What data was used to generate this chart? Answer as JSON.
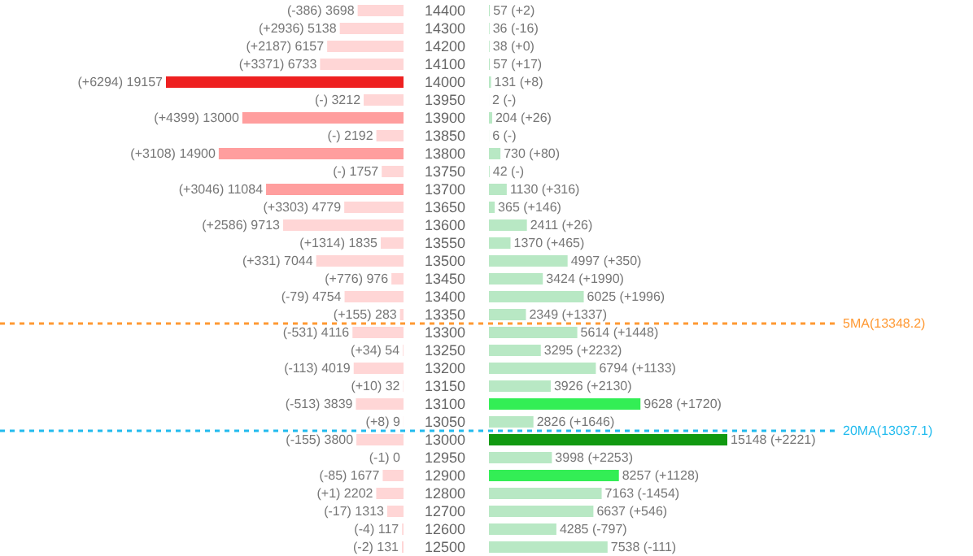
{
  "chart_data": [
    {
      "type": "bar",
      "orientation": "horizontal",
      "tick_labels": false,
      "categories": [
        "14400",
        "14300",
        "14200",
        "14100",
        "14000",
        "13950",
        "13900",
        "13850",
        "13800",
        "13750",
        "13700",
        "13650",
        "13600",
        "13550",
        "13500",
        "13450",
        "13400",
        "13350",
        "13300",
        "13250",
        "13200",
        "13150",
        "13100",
        "13050",
        "13000",
        "12950",
        "12900",
        "12800",
        "12700",
        "12600",
        "12500"
      ],
      "values": [
        3698,
        5138,
        6157,
        6733,
        19157,
        3212,
        13000,
        2192,
        14900,
        1757,
        11084,
        4779,
        9713,
        1835,
        7044,
        976,
        4754,
        283,
        4116,
        54,
        4019,
        32,
        3839,
        9,
        3800,
        0,
        1677,
        2202,
        1313,
        117,
        131
      ],
      "colors": [
        "#ffd6d6",
        "#ffd6d6",
        "#ffd6d6",
        "#ffd6d6",
        "#ee2020",
        "#ffd6d6",
        "#ff9e9e",
        "#ffd6d6",
        "#ff9e9e",
        "#ffd6d6",
        "#ff9e9e",
        "#ffd6d6",
        "#ffd6d6",
        "#ffd6d6",
        "#ffd6d6",
        "#ffd6d6",
        "#ffd6d6",
        "#ffd6d6",
        "#ffd6d6",
        "#ffd6d6",
        "#ffd6d6",
        "#ffd6d6",
        "#ffd6d6",
        "#ffd6d6",
        "#ffd6d6",
        "#ffd6d6",
        "#ffd6d6",
        "#ffd6d6",
        "#ffd6d6",
        "#ffd6d6",
        "#ffd6d6"
      ],
      "value_labels": [
        "(-386) 3698",
        "(+2936) 5138",
        "(+2187) 6157",
        "(+3371) 6733",
        "(+6294) 19157",
        "(-) 3212",
        "(+4399) 13000",
        "(-) 2192",
        "(+3108) 14900",
        "(-) 1757",
        "(+3046) 11084",
        "(+3303) 4779",
        "(+2586) 9713",
        "(+1314) 1835",
        "(+331) 7044",
        "(+776) 976",
        "(-79) 4754",
        "(+155) 283",
        "(-531) 4116",
        "(+34) 54",
        "(-113) 4019",
        "(+10) 32",
        "(-513) 3839",
        "(+8) 9",
        "(-155) 3800",
        "(-1) 0",
        "(-85) 1677",
        "(+1) 2202",
        "(-17) 1313",
        "(-4) 117",
        "(-2) 131"
      ],
      "ref_lines": [
        {
          "axis": "y",
          "value": "13350",
          "color": "#ff9933",
          "line_style": "dashed"
        },
        {
          "axis": "y",
          "value": "13050",
          "color": "#22bbee",
          "line_style": "dashed"
        }
      ]
    },
    {
      "type": "bar",
      "orientation": "horizontal",
      "categories": [
        "14400",
        "14300",
        "14200",
        "14100",
        "14000",
        "13950",
        "13900",
        "13850",
        "13800",
        "13750",
        "13700",
        "13650",
        "13600",
        "13550",
        "13500",
        "13450",
        "13400",
        "13350",
        "13300",
        "13250",
        "13200",
        "13150",
        "13100",
        "13050",
        "13000",
        "12950",
        "12900",
        "12800",
        "12700",
        "12600",
        "12500"
      ],
      "values": [
        57,
        36,
        38,
        57,
        131,
        2,
        204,
        6,
        730,
        42,
        1130,
        365,
        2411,
        1370,
        4997,
        3424,
        6025,
        2349,
        5614,
        3295,
        6794,
        3926,
        9628,
        2826,
        15148,
        3998,
        8257,
        7163,
        6637,
        4285,
        7538
      ],
      "colors": [
        "#b8e8c4",
        "#b8e8c4",
        "#b8e8c4",
        "#b8e8c4",
        "#b8e8c4",
        "#b8e8c4",
        "#b8e8c4",
        "#b8e8c4",
        "#b8e8c4",
        "#b8e8c4",
        "#b8e8c4",
        "#b8e8c4",
        "#b8e8c4",
        "#b8e8c4",
        "#b8e8c4",
        "#b8e8c4",
        "#b8e8c4",
        "#b8e8c4",
        "#b8e8c4",
        "#b8e8c4",
        "#b8e8c4",
        "#b8e8c4",
        "#33ee55",
        "#b8e8c4",
        "#119911",
        "#b8e8c4",
        "#33ee55",
        "#b8e8c4",
        "#b8e8c4",
        "#b8e8c4",
        "#b8e8c4"
      ],
      "value_labels": [
        "57 (+2)",
        "36 (-16)",
        "38 (+0)",
        "57 (+17)",
        "131 (+8)",
        "2 (-)",
        "204 (+26)",
        "6 (-)",
        "730 (+80)",
        "42 (-)",
        "1130 (+316)",
        "365 (+146)",
        "2411 (+26)",
        "1370 (+465)",
        "4997 (+350)",
        "3424 (+1990)",
        "6025 (+1996)",
        "2349 (+1337)",
        "5614 (+1448)",
        "3295 (+2232)",
        "6794 (+1133)",
        "3926 (+2130)",
        "9628 (+1720)",
        "2826 (+1646)",
        "15148 (+2221)",
        "3998 (+2253)",
        "8257 (+1128)",
        "7163 (-1454)",
        "6637 (+546)",
        "4285 (-797)",
        "7538 (-111)"
      ],
      "ref_lines": [
        {
          "axis": "y",
          "value": "13350",
          "label": "5MA(13348.2)",
          "color": "#ff9933",
          "line_style": "dashed"
        },
        {
          "axis": "y",
          "value": "13050",
          "label": "20MA(13037.1)",
          "color": "#22bbee",
          "line_style": "dashed"
        }
      ]
    }
  ]
}
